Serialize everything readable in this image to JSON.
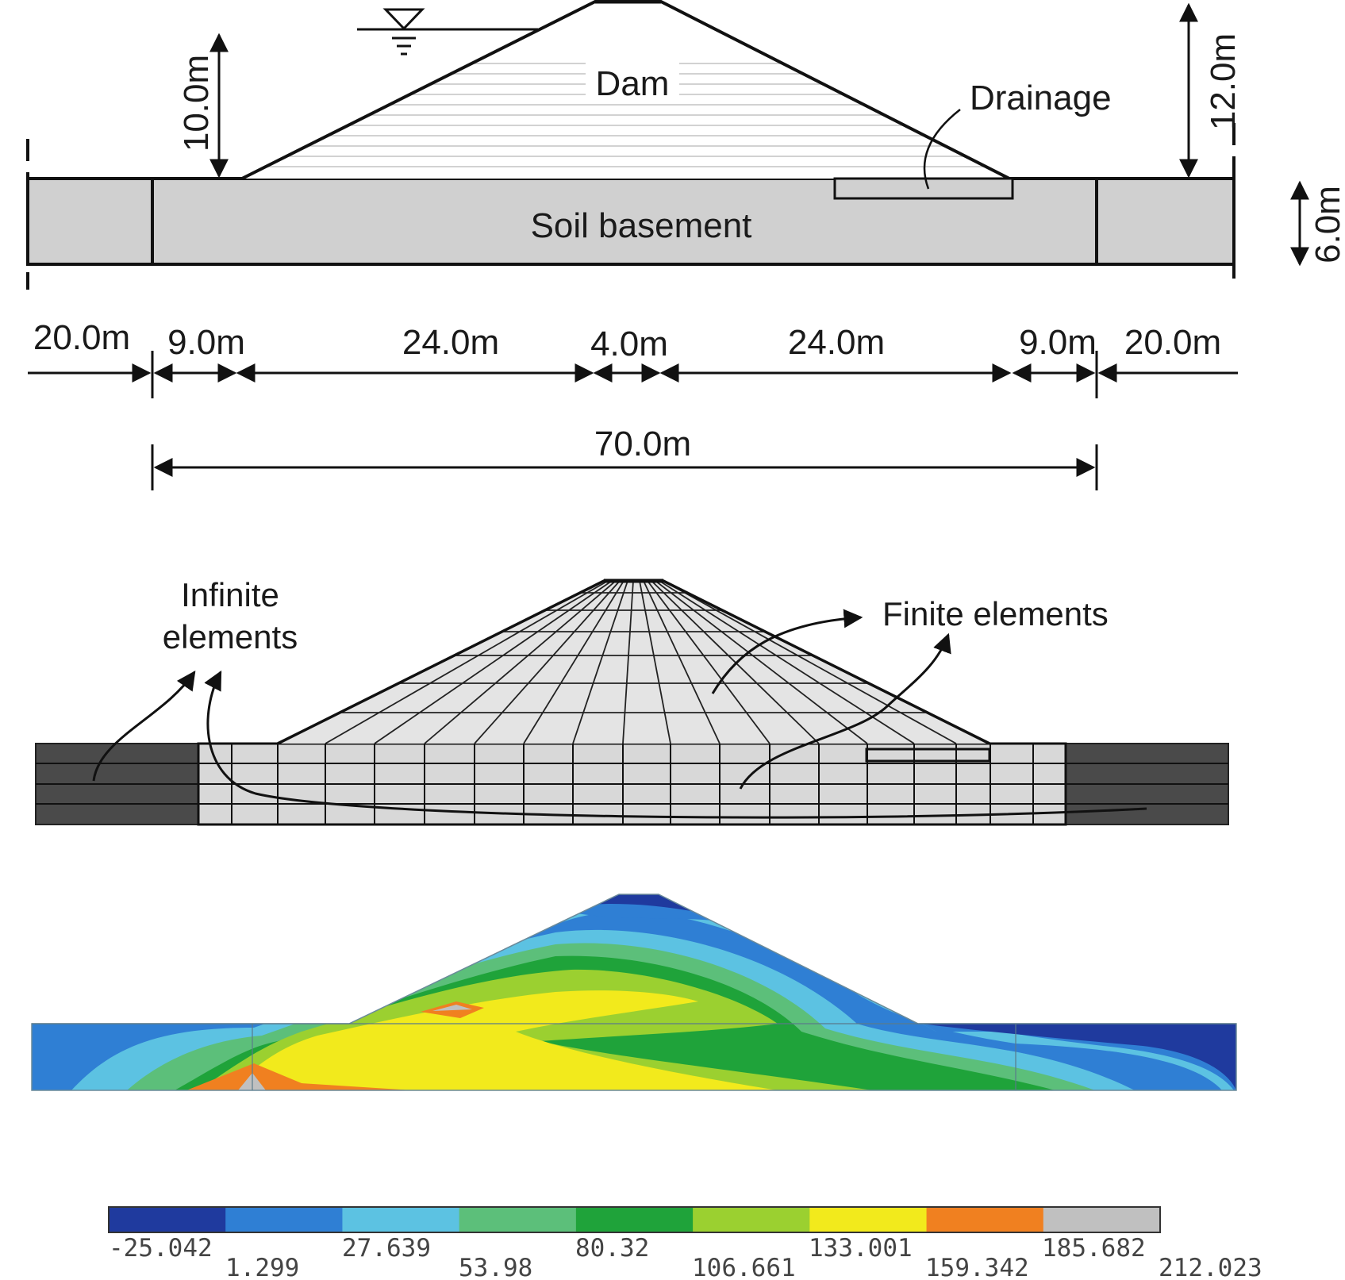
{
  "section": {
    "dam_label": "Dam",
    "drainage_label": "Drainage",
    "soil_label": "Soil basement",
    "dims": {
      "left_height": "10.0m",
      "right_height": "12.0m",
      "soil_thickness": "6.0m",
      "widths": [
        "20.0m",
        "9.0m",
        "24.0m",
        "4.0m",
        "24.0m",
        "9.0m",
        "20.0m"
      ],
      "total": "70.0m"
    }
  },
  "mesh": {
    "infinite_label_line1": "Infinite",
    "infinite_label_line2": "elements",
    "finite_label": "Finite elements"
  },
  "legend": {
    "colors": [
      "#1f3a9e",
      "#2f7fd4",
      "#5cc2e2",
      "#5cbf7a",
      "#1fa33a",
      "#9bd030",
      "#f2ea1c",
      "#f08020",
      "#c0c0c0"
    ],
    "values": [
      "-25.042",
      "1.299",
      "27.639",
      "53.98",
      "80.32",
      "106.661",
      "133.001",
      "159.342",
      "185.682",
      "212.023"
    ]
  }
}
